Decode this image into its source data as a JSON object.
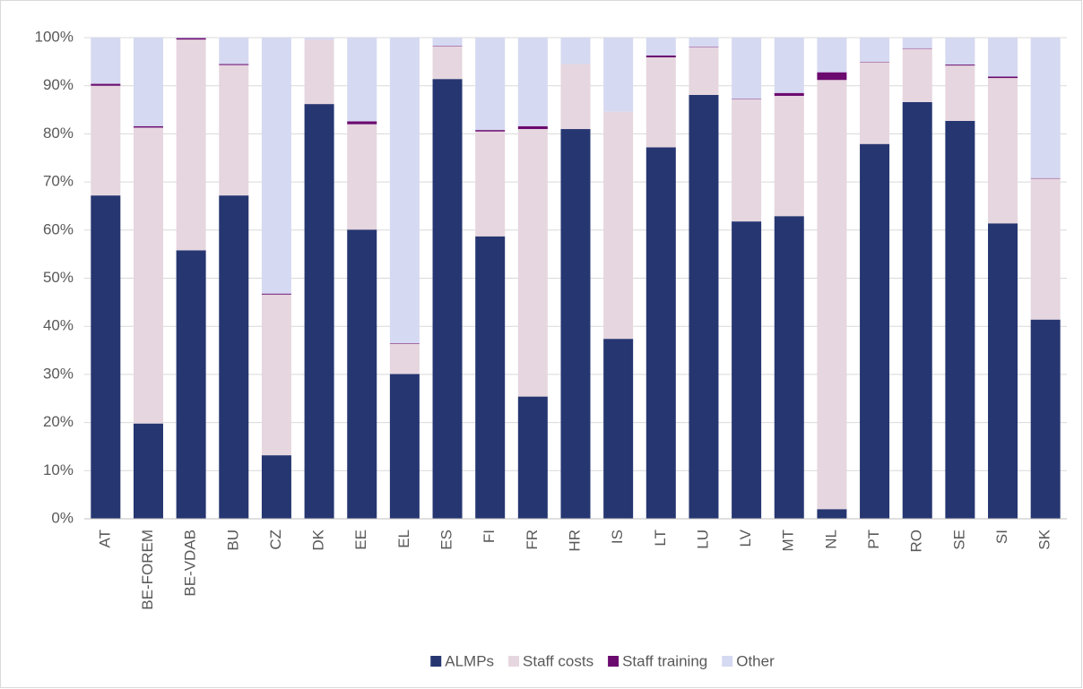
{
  "chart_data": {
    "type": "stacked_bar",
    "categories": [
      "AT",
      "BE-FOREM",
      "BE-VDAB",
      "BU",
      "CZ",
      "DK",
      "EE",
      "EL",
      "ES",
      "FI",
      "FR",
      "HR",
      "IS",
      "LT",
      "LU",
      "LV",
      "MT",
      "NL",
      "PT",
      "RO",
      "SE",
      "SI",
      "SK"
    ],
    "series": [
      {
        "name": "ALMPs",
        "color": "#263671",
        "values": [
          67.2,
          19.8,
          55.8,
          67.2,
          13.2,
          86.2,
          60.1,
          30.1,
          91.4,
          58.7,
          25.4,
          81.0,
          37.4,
          77.2,
          88.1,
          61.8,
          62.9,
          2.0,
          77.9,
          86.6,
          82.7,
          61.4,
          41.4
        ]
      },
      {
        "name": "Staff costs",
        "color": "#e6d6df",
        "values": [
          22.8,
          61.5,
          43.8,
          27.1,
          33.4,
          13.4,
          21.9,
          6.3,
          6.8,
          21.8,
          55.6,
          13.5,
          47.2,
          18.7,
          9.9,
          25.4,
          25.0,
          89.2,
          17.0,
          11.1,
          11.5,
          30.2,
          29.3
        ]
      },
      {
        "name": "Staff training",
        "color": "#6b0a6f",
        "values": [
          0.4,
          0.3,
          0.3,
          0.2,
          0.2,
          0,
          0.6,
          0.1,
          0.1,
          0.3,
          0.6,
          0,
          0,
          0.4,
          0.1,
          0.1,
          0.6,
          1.6,
          0.1,
          0.1,
          0.2,
          0.3,
          0.1
        ]
      },
      {
        "name": "Other",
        "color": "#d5d9f1",
        "values": [
          9.6,
          18.4,
          0.1,
          5.5,
          53.2,
          0.4,
          17.4,
          63.5,
          1.7,
          19.2,
          18.4,
          5.5,
          15.4,
          3.7,
          1.9,
          12.7,
          11.5,
          7.2,
          5.0,
          2.2,
          5.6,
          8.1,
          29.2
        ]
      }
    ],
    "ylim": [
      0,
      100
    ],
    "yticks": [
      {
        "value": 0,
        "label": "0%"
      },
      {
        "value": 10,
        "label": "10%"
      },
      {
        "value": 20,
        "label": "20%"
      },
      {
        "value": 30,
        "label": "30%"
      },
      {
        "value": 40,
        "label": "40%"
      },
      {
        "value": 50,
        "label": "50%"
      },
      {
        "value": 60,
        "label": "60%"
      },
      {
        "value": 70,
        "label": "70%"
      },
      {
        "value": 80,
        "label": "80%"
      },
      {
        "value": 90,
        "label": "90%"
      },
      {
        "value": 100,
        "label": "100%"
      }
    ],
    "grid": true,
    "legend": "bottom"
  }
}
